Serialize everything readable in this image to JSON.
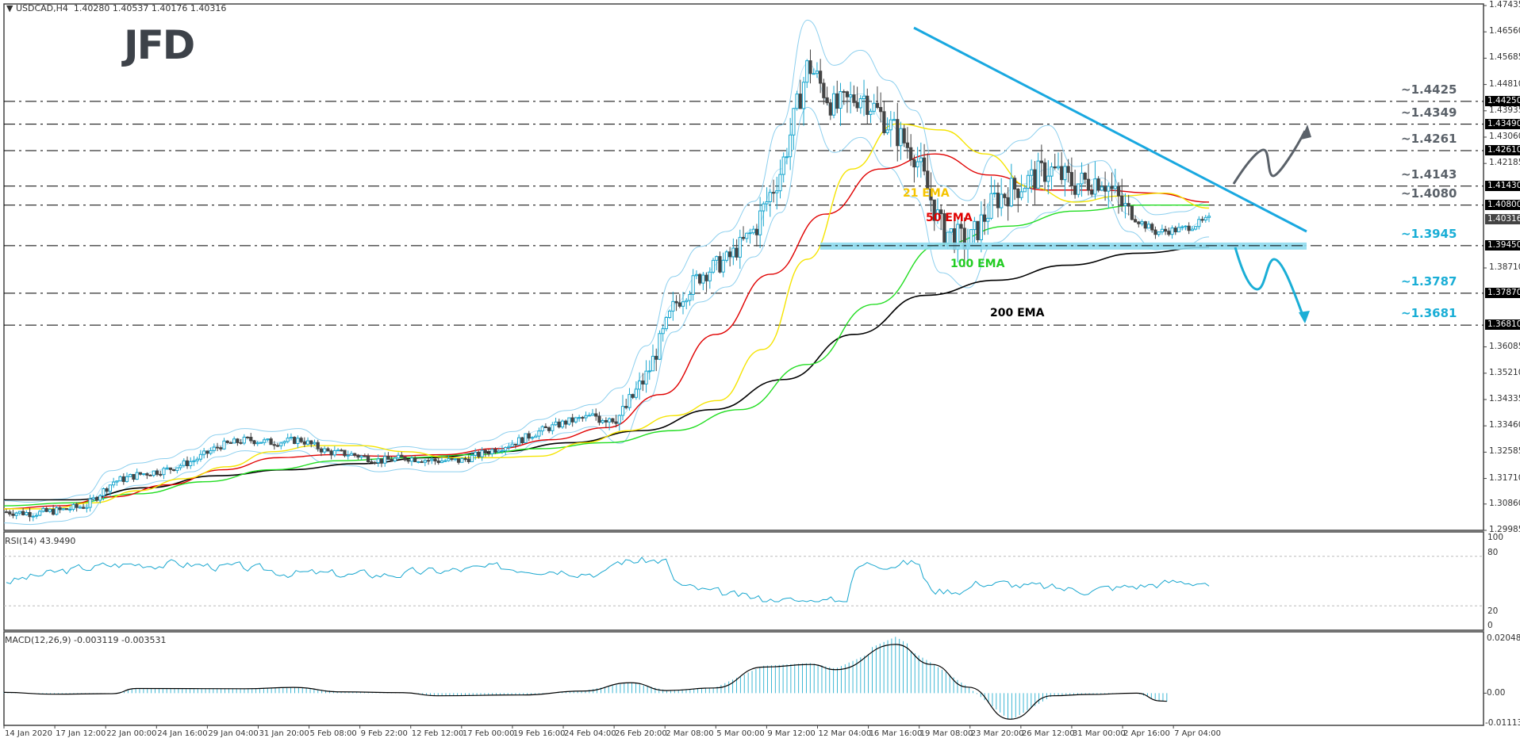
{
  "header": {
    "symbol_label": "USDCAD,H4",
    "ohlc": "1.40280 1.40537 1.40176 1.40316",
    "logo": "JFD"
  },
  "colors": {
    "bull": "#1aa7cf",
    "bear": "#444444",
    "ema21": "#f5e400",
    "ema50": "#e00000",
    "ema100": "#22dd22",
    "ema200": "#000000",
    "bands": "#8ccfee",
    "trendline": "#19a8e0",
    "support": "#8fdcf0",
    "level_gray": "#5a6169",
    "level_blue": "#1aaed6"
  },
  "price_axis": {
    "ticks": [
      "1.47435",
      "1.46560",
      "1.45685",
      "1.44810",
      "1.43935",
      "1.43060",
      "1.42185",
      "1.38710",
      "1.36085",
      "1.35210",
      "1.34335",
      "1.33460",
      "1.32585",
      "1.31710",
      "1.30860",
      "1.29985"
    ],
    "tags": [
      {
        "value": "1.44250",
        "current": false
      },
      {
        "value": "1.43490",
        "current": false
      },
      {
        "value": "1.42610",
        "current": false
      },
      {
        "value": "1.41430",
        "current": false
      },
      {
        "value": "1.40800",
        "current": false
      },
      {
        "value": "1.40316",
        "current": true
      },
      {
        "value": "1.39450",
        "current": false
      },
      {
        "value": "1.37870",
        "current": false
      },
      {
        "value": "1.36810",
        "current": false
      }
    ]
  },
  "levels": [
    {
      "label": "~1.4425",
      "price": 1.4425,
      "color": "gray"
    },
    {
      "label": "~1.4349",
      "price": 1.4349,
      "color": "gray"
    },
    {
      "label": "~1.4261",
      "price": 1.4261,
      "color": "gray"
    },
    {
      "label": "~1.4143",
      "price": 1.4143,
      "color": "gray"
    },
    {
      "label": "~1.4080",
      "price": 1.408,
      "color": "gray"
    },
    {
      "label": "~1.3945",
      "price": 1.3945,
      "color": "blue"
    },
    {
      "label": "~1.3787",
      "price": 1.3787,
      "color": "blue"
    },
    {
      "label": "~1.3681",
      "price": 1.3681,
      "color": "blue"
    }
  ],
  "ema_labels": {
    "ema21": "21 EMA",
    "ema50": "50 EMA",
    "ema100": "100 EMA",
    "ema200": "200 EMA"
  },
  "rsi": {
    "label": "RSI(14) 43.9490",
    "axis": [
      "100",
      "80",
      "20",
      "0"
    ]
  },
  "macd": {
    "label": "MACD(12,26,9) -0.003119 -0.003531",
    "axis": [
      "0.020489",
      "0.00",
      "-0.011132"
    ]
  },
  "dates": [
    "14 Jan 2020",
    "17 Jan 12:00",
    "22 Jan 00:00",
    "24 Jan 16:00",
    "29 Jan 04:00",
    "31 Jan 20:00",
    "5 Feb 08:00",
    "9 Feb 22:00",
    "12 Feb 12:00",
    "17 Feb 00:00",
    "19 Feb 16:00",
    "24 Feb 04:00",
    "26 Feb 20:00",
    "2 Mar 08:00",
    "5 Mar 00:00",
    "9 Mar 12:00",
    "12 Mar 04:00",
    "16 Mar 16:00",
    "19 Mar 08:00",
    "23 Mar 20:00",
    "26 Mar 12:00",
    "31 Mar 00:00",
    "2 Apr 16:00",
    "7 Apr 04:00"
  ],
  "chart_data": {
    "type": "candlestick",
    "title": "USDCAD,H4",
    "ylim": [
      1.29985,
      1.47435
    ],
    "x_dates": [
      "14 Jan 2020",
      "17 Jan 12:00",
      "22 Jan 00:00",
      "24 Jan 16:00",
      "29 Jan 04:00",
      "31 Jan 20:00",
      "5 Feb 08:00",
      "9 Feb 22:00",
      "12 Feb 12:00",
      "17 Feb 00:00",
      "19 Feb 16:00",
      "24 Feb 04:00",
      "26 Feb 20:00",
      "2 Mar 08:00",
      "5 Mar 00:00",
      "9 Mar 12:00",
      "12 Mar 04:00",
      "16 Mar 16:00",
      "19 Mar 08:00",
      "23 Mar 20:00",
      "26 Mar 12:00",
      "31 Mar 00:00",
      "2 Apr 16:00",
      "7 Apr 04:00"
    ],
    "price_close_path": [
      1.306,
      1.3055,
      1.3065,
      1.308,
      1.316,
      1.3185,
      1.32,
      1.323,
      1.328,
      1.33,
      1.329,
      1.33,
      1.326,
      1.325,
      1.323,
      1.324,
      1.323,
      1.323,
      1.326,
      1.329,
      1.333,
      1.336,
      1.338,
      1.338,
      1.352,
      1.375,
      1.385,
      1.39,
      1.4,
      1.42,
      1.455,
      1.44,
      1.445,
      1.435,
      1.425,
      1.4,
      1.395,
      1.41,
      1.415,
      1.42,
      1.415,
      1.417,
      1.405,
      1.399,
      1.4,
      1.4032
    ],
    "ema21_path": [
      1.307,
      1.307,
      1.309,
      1.313,
      1.317,
      1.321,
      1.326,
      1.328,
      1.328,
      1.326,
      1.324,
      1.324,
      1.3245,
      1.329,
      1.333,
      1.338,
      1.343,
      1.36,
      1.39,
      1.42,
      1.435,
      1.433,
      1.425,
      1.414,
      1.409,
      1.411,
      1.412,
      1.407
    ],
    "ema50_path": [
      1.307,
      1.308,
      1.311,
      1.315,
      1.32,
      1.324,
      1.325,
      1.3245,
      1.325,
      1.327,
      1.33,
      1.334,
      1.345,
      1.365,
      1.385,
      1.405,
      1.42,
      1.425,
      1.418,
      1.413,
      1.413,
      1.412,
      1.409
    ],
    "ema100_path": [
      1.308,
      1.309,
      1.312,
      1.316,
      1.32,
      1.323,
      1.324,
      1.325,
      1.327,
      1.329,
      1.333,
      1.34,
      1.355,
      1.375,
      1.395,
      1.401,
      1.406,
      1.408,
      1.408
    ],
    "ema200_path": [
      1.31,
      1.31,
      1.314,
      1.318,
      1.32,
      1.322,
      1.324,
      1.326,
      1.329,
      1.333,
      1.34,
      1.35,
      1.365,
      1.378,
      1.383,
      1.388,
      1.392,
      1.394
    ],
    "annotations": {
      "trendline": [
        [
          "19 Mar 00:00",
          1.4665
        ],
        [
          "9 Apr",
          1.4
        ]
      ],
      "support": 1.3945,
      "scenarios": [
        "up to ~1.4349 after breaking trendline",
        "down to ~1.3681 after breaking ~1.3945"
      ]
    },
    "rsi": {
      "overbought": 80,
      "oversold": 20,
      "last": 43.949
    },
    "macd": {
      "macd": -0.003119,
      "signal": -0.003531,
      "ymax": 0.020489,
      "ymin": -0.011132
    }
  }
}
